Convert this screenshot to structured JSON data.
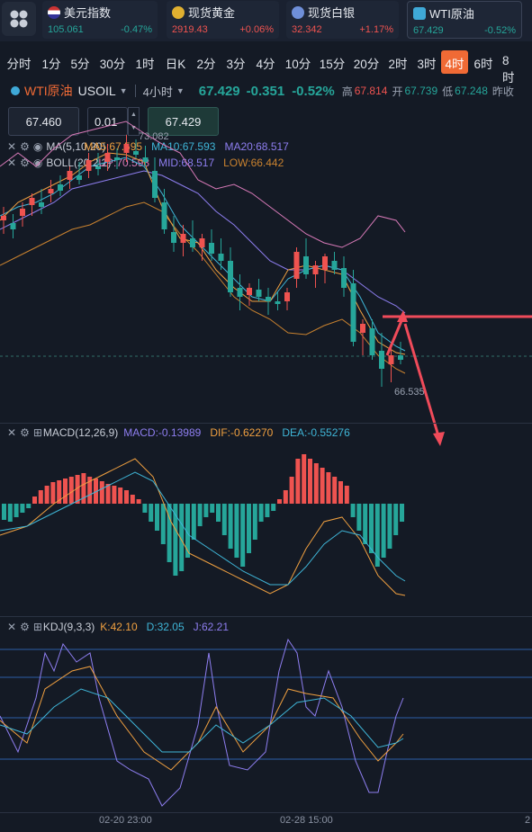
{
  "tickers": [
    {
      "name": "美元指数",
      "price": "105.061",
      "change": "-0.47%",
      "flag": "us"
    },
    {
      "name": "现货黄金",
      "price": "2919.43",
      "change": "+0.06%",
      "flag": "gold"
    },
    {
      "name": "现货白银",
      "price": "32.342",
      "change": "+1.17%",
      "flag": "silver"
    },
    {
      "name": "WTI原油",
      "price": "67.429",
      "change": "-0.52%",
      "flag": "oil"
    }
  ],
  "timeframes": [
    "分时",
    "1分",
    "5分",
    "30分",
    "1时",
    "日K",
    "2分",
    "3分",
    "4分",
    "10分",
    "15分",
    "20分",
    "2时",
    "3时",
    "4时",
    "6时",
    "8时"
  ],
  "active_timeframe": "4时",
  "symbol": {
    "name": "WTI原油",
    "code": "USOIL",
    "period": "4小时",
    "price": "67.429",
    "change": "-0.351",
    "pct": "-0.52%",
    "high_label": "高",
    "high": "67.814",
    "open_label": "开",
    "open": "67.739",
    "low_label": "低",
    "low": "67.248",
    "prev_label": "昨收"
  },
  "order": {
    "bid": "67.460",
    "qty": "0.01",
    "ask": "67.429"
  },
  "indicators": {
    "ma": {
      "label": "MA(5,10,20)",
      "ma5": "MA5:67.595",
      "ma10": "MA10:67.593",
      "ma20": "MA20:68.517"
    },
    "boll": {
      "label": "BOLL(20,2,2)",
      "up": "UP:70.593",
      "mid": "MID:68.517",
      "low": "LOW:66.442"
    },
    "macd": {
      "label": "MACD(12,26,9)",
      "macd": "MACD:-0.13989",
      "dif": "DIF:-0.62270",
      "dea": "DEA:-0.55276"
    },
    "kdj": {
      "label": "KDJ(9,3,3)",
      "k": "K:42.10",
      "d": "D:32.05",
      "j": "J:62.21"
    }
  },
  "annotations": {
    "high_mark": "73.082",
    "low_mark": "66.535"
  },
  "xaxis": [
    "02-20 23:00",
    "02-28 15:00",
    "2"
  ],
  "colors": {
    "up": "#ef5350",
    "down": "#26a69a",
    "accent": "#f06a35",
    "ma5": "#f0a040",
    "ma10": "#3fb6d8",
    "ma20": "#8e7ef0",
    "boll_up": "#d87ab8",
    "boll_low": "#c9822f"
  }
}
